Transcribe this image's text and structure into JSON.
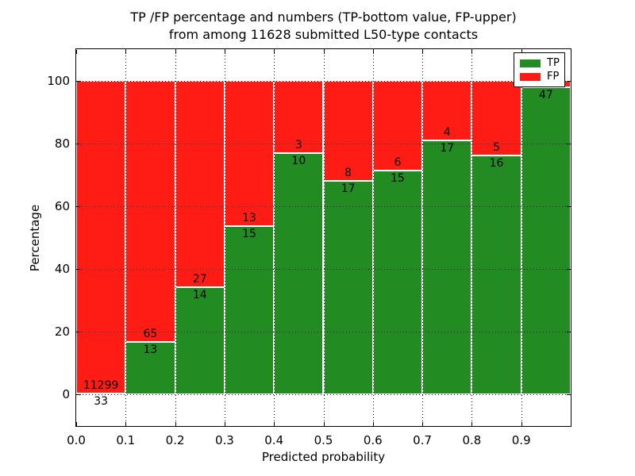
{
  "chart_data": {
    "type": "bar",
    "stacked": true,
    "units": "percent",
    "title": "TP /FP percentage and numbers (TP-bottom value, FP-upper) from among 11628 submitted L50-type contacts",
    "title_lines": [
      "TP /FP percentage and numbers (TP-bottom value, FP-upper)",
      "from among 11628 submitted L50-type contacts"
    ],
    "xlabel": "Predicted probability",
    "ylabel": "Percentage",
    "xlim": [
      0.0,
      1.0
    ],
    "ylim": [
      -10,
      110
    ],
    "x_tick_labels": [
      "0.0",
      "0.1",
      "0.2",
      "0.3",
      "0.4",
      "0.5",
      "0.6",
      "0.7",
      "0.8",
      "0.9"
    ],
    "y_ticks": [
      0,
      20,
      40,
      60,
      80,
      100
    ],
    "grid": "dotted black, horizontal at y-ticks and vertical at x-ticks, drawn above bars",
    "colors": {
      "tp": "#228b22",
      "fp": "#ff1c14",
      "bar_edge": "#ffffff"
    },
    "legend": {
      "position": "upper right",
      "items": [
        {
          "label": "TP",
          "color": "#228b22"
        },
        {
          "label": "FP",
          "color": "#ff1c14"
        }
      ]
    },
    "bins": [
      {
        "range": [
          0.0,
          0.1
        ],
        "tp_label": "33",
        "fp_label": "11299",
        "tp_pct": 0.3,
        "fp_pct": 99.7
      },
      {
        "range": [
          0.1,
          0.2
        ],
        "tp_label": "13",
        "fp_label": "65",
        "tp_pct": 16.7,
        "fp_pct": 83.3
      },
      {
        "range": [
          0.2,
          0.3
        ],
        "tp_label": "14",
        "fp_label": "27",
        "tp_pct": 34.1,
        "fp_pct": 65.9
      },
      {
        "range": [
          0.3,
          0.4
        ],
        "tp_label": "15",
        "fp_label": "13",
        "tp_pct": 53.6,
        "fp_pct": 46.4
      },
      {
        "range": [
          0.4,
          0.5
        ],
        "tp_label": "10",
        "fp_label": "3",
        "tp_pct": 76.9,
        "fp_pct": 23.1
      },
      {
        "range": [
          0.5,
          0.6
        ],
        "tp_label": "17",
        "fp_label": "8",
        "tp_pct": 68.0,
        "fp_pct": 32.0
      },
      {
        "range": [
          0.6,
          0.7
        ],
        "tp_label": "15",
        "fp_label": "6",
        "tp_pct": 71.4,
        "fp_pct": 28.6
      },
      {
        "range": [
          0.7,
          0.8
        ],
        "tp_label": "17",
        "fp_label": "4",
        "tp_pct": 81.0,
        "fp_pct": 19.0
      },
      {
        "range": [
          0.8,
          0.9
        ],
        "tp_label": "16",
        "fp_label": "5",
        "tp_pct": 76.2,
        "fp_pct": 23.8
      },
      {
        "range": [
          0.9,
          1.0
        ],
        "tp_label": "47",
        "fp_label": "",
        "tp_pct": 97.9,
        "fp_pct": 2.1
      }
    ]
  }
}
